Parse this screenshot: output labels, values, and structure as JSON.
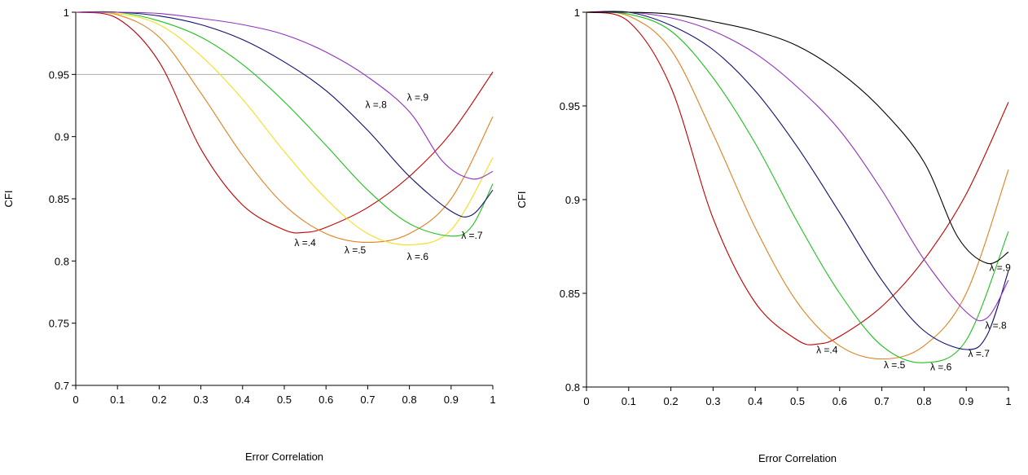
{
  "chart_data": [
    {
      "type": "line",
      "title": "",
      "xlabel": "Error Correlation",
      "ylabel": "CFI",
      "xlim": [
        0,
        1
      ],
      "ylim": [
        0.7,
        1
      ],
      "xticks": [
        "0",
        "0.1",
        "0.2",
        "0.3",
        "0.4",
        "0.5",
        "0.6",
        "0.7",
        "0.8",
        "0.9",
        "1"
      ],
      "yticks": [
        "0.7",
        "0.75",
        "0.8",
        "0.85",
        "0.9",
        "0.95",
        "1"
      ],
      "reference_line": {
        "y": 0.95,
        "color": "#b0b0b0"
      },
      "series": [
        {
          "name": "λ =.4",
          "color": "#c00000",
          "x": [
            0,
            0.1,
            0.2,
            0.3,
            0.4,
            0.5,
            0.55,
            0.6,
            0.7,
            0.8,
            0.9,
            1.0
          ],
          "y": [
            1,
            0.995,
            0.96,
            0.89,
            0.845,
            0.825,
            0.823,
            0.827,
            0.843,
            0.868,
            0.903,
            0.952
          ]
        },
        {
          "name": "λ =.5",
          "color": "#e08020",
          "x": [
            0,
            0.1,
            0.2,
            0.3,
            0.4,
            0.5,
            0.6,
            0.7,
            0.8,
            0.9,
            1.0
          ],
          "y": [
            1,
            0.998,
            0.98,
            0.935,
            0.885,
            0.845,
            0.822,
            0.815,
            0.822,
            0.85,
            0.916
          ]
        },
        {
          "name": "λ =.6",
          "color": "#f0e020",
          "x": [
            0,
            0.1,
            0.2,
            0.3,
            0.4,
            0.5,
            0.6,
            0.7,
            0.8,
            0.9,
            1.0
          ],
          "y": [
            1,
            0.999,
            0.99,
            0.965,
            0.93,
            0.888,
            0.85,
            0.822,
            0.813,
            0.825,
            0.883
          ]
        },
        {
          "name": "λ =.7",
          "color": "#20c020",
          "x": [
            0,
            0.1,
            0.2,
            0.3,
            0.4,
            0.5,
            0.6,
            0.7,
            0.8,
            0.9,
            0.95,
            1.0
          ],
          "y": [
            1,
            1,
            0.993,
            0.98,
            0.958,
            0.928,
            0.893,
            0.857,
            0.83,
            0.82,
            0.828,
            0.862
          ]
        },
        {
          "name": "λ =.8",
          "color": "#101070",
          "x": [
            0,
            0.1,
            0.2,
            0.3,
            0.4,
            0.5,
            0.6,
            0.7,
            0.8,
            0.9,
            0.95,
            1.0
          ],
          "y": [
            1,
            1,
            0.997,
            0.99,
            0.978,
            0.96,
            0.937,
            0.905,
            0.868,
            0.84,
            0.837,
            0.857
          ]
        },
        {
          "name": "λ =.9",
          "color": "#9030c0",
          "x": [
            0,
            0.1,
            0.2,
            0.3,
            0.4,
            0.5,
            0.6,
            0.7,
            0.8,
            0.88,
            0.95,
            1.0
          ],
          "y": [
            1,
            1,
            0.999,
            0.995,
            0.99,
            0.982,
            0.968,
            0.948,
            0.92,
            0.88,
            0.866,
            0.872
          ]
        }
      ]
    },
    {
      "type": "line",
      "title": "",
      "xlabel": "Error Correlation",
      "ylabel": "CFI",
      "xlim": [
        0,
        1
      ],
      "ylim": [
        0.8,
        1
      ],
      "xticks": [
        "0",
        "0.1",
        "0.2",
        "0.3",
        "0.4",
        "0.5",
        "0.6",
        "0.7",
        "0.8",
        "0.9",
        "1"
      ],
      "yticks": [
        "0.8",
        "0.85",
        "0.9",
        "0.95",
        "1"
      ],
      "series": [
        {
          "name": "λ =.4",
          "color": "#c00000",
          "x": [
            0,
            0.1,
            0.2,
            0.3,
            0.4,
            0.5,
            0.55,
            0.6,
            0.7,
            0.8,
            0.9,
            1.0
          ],
          "y": [
            1,
            0.995,
            0.96,
            0.89,
            0.845,
            0.825,
            0.823,
            0.827,
            0.843,
            0.868,
            0.903,
            0.952
          ]
        },
        {
          "name": "λ =.5",
          "color": "#e08020",
          "x": [
            0,
            0.1,
            0.2,
            0.3,
            0.4,
            0.5,
            0.6,
            0.7,
            0.8,
            0.9,
            1.0
          ],
          "y": [
            1,
            0.998,
            0.98,
            0.935,
            0.885,
            0.845,
            0.822,
            0.815,
            0.822,
            0.85,
            0.916
          ]
        },
        {
          "name": "λ =.6",
          "color": "#20c020",
          "x": [
            0,
            0.1,
            0.2,
            0.3,
            0.4,
            0.5,
            0.6,
            0.7,
            0.8,
            0.9,
            1.0
          ],
          "y": [
            1,
            0.999,
            0.99,
            0.965,
            0.93,
            0.888,
            0.85,
            0.822,
            0.813,
            0.825,
            0.883
          ]
        },
        {
          "name": "λ =.7",
          "color": "#101070",
          "x": [
            0,
            0.1,
            0.2,
            0.3,
            0.4,
            0.5,
            0.6,
            0.7,
            0.8,
            0.9,
            0.95,
            1.0
          ],
          "y": [
            1,
            1,
            0.993,
            0.98,
            0.958,
            0.928,
            0.893,
            0.857,
            0.83,
            0.82,
            0.828,
            0.862
          ]
        },
        {
          "name": "λ =.8",
          "color": "#9030c0",
          "x": [
            0,
            0.1,
            0.2,
            0.3,
            0.4,
            0.5,
            0.6,
            0.7,
            0.8,
            0.9,
            0.95,
            1.0
          ],
          "y": [
            1,
            1,
            0.997,
            0.99,
            0.978,
            0.96,
            0.937,
            0.905,
            0.868,
            0.84,
            0.837,
            0.857
          ]
        },
        {
          "name": "λ =.9",
          "color": "#000000",
          "x": [
            0,
            0.1,
            0.2,
            0.3,
            0.4,
            0.5,
            0.6,
            0.7,
            0.8,
            0.88,
            0.95,
            1.0
          ],
          "y": [
            1,
            1,
            0.999,
            0.995,
            0.99,
            0.982,
            0.968,
            0.948,
            0.92,
            0.88,
            0.866,
            0.872
          ]
        }
      ]
    }
  ]
}
